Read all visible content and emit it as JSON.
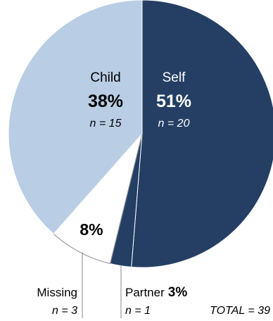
{
  "chart_data": {
    "type": "pie",
    "slices": [
      {
        "label": "Self",
        "percent_label": "51%",
        "n_label": "n = 20",
        "value": 20,
        "color": "#243f63"
      },
      {
        "label": "Partner",
        "percent_label": "3%",
        "n_label": "n = 1",
        "value": 1,
        "color": "#243f63"
      },
      {
        "label": "Missing",
        "percent_label": "8%",
        "n_label": "n = 3",
        "value": 3,
        "color": "#ffffff"
      },
      {
        "label": "Child",
        "percent_label": "38%",
        "n_label": "n = 15",
        "value": 15,
        "color": "#b9cde4"
      }
    ],
    "total_label": "TOTAL = 39",
    "slice_border_color": "#8a8a8a",
    "leader_line_color": "#8a8a8a",
    "label_text_dark": "#000000",
    "label_text_light": "#ffffff"
  }
}
